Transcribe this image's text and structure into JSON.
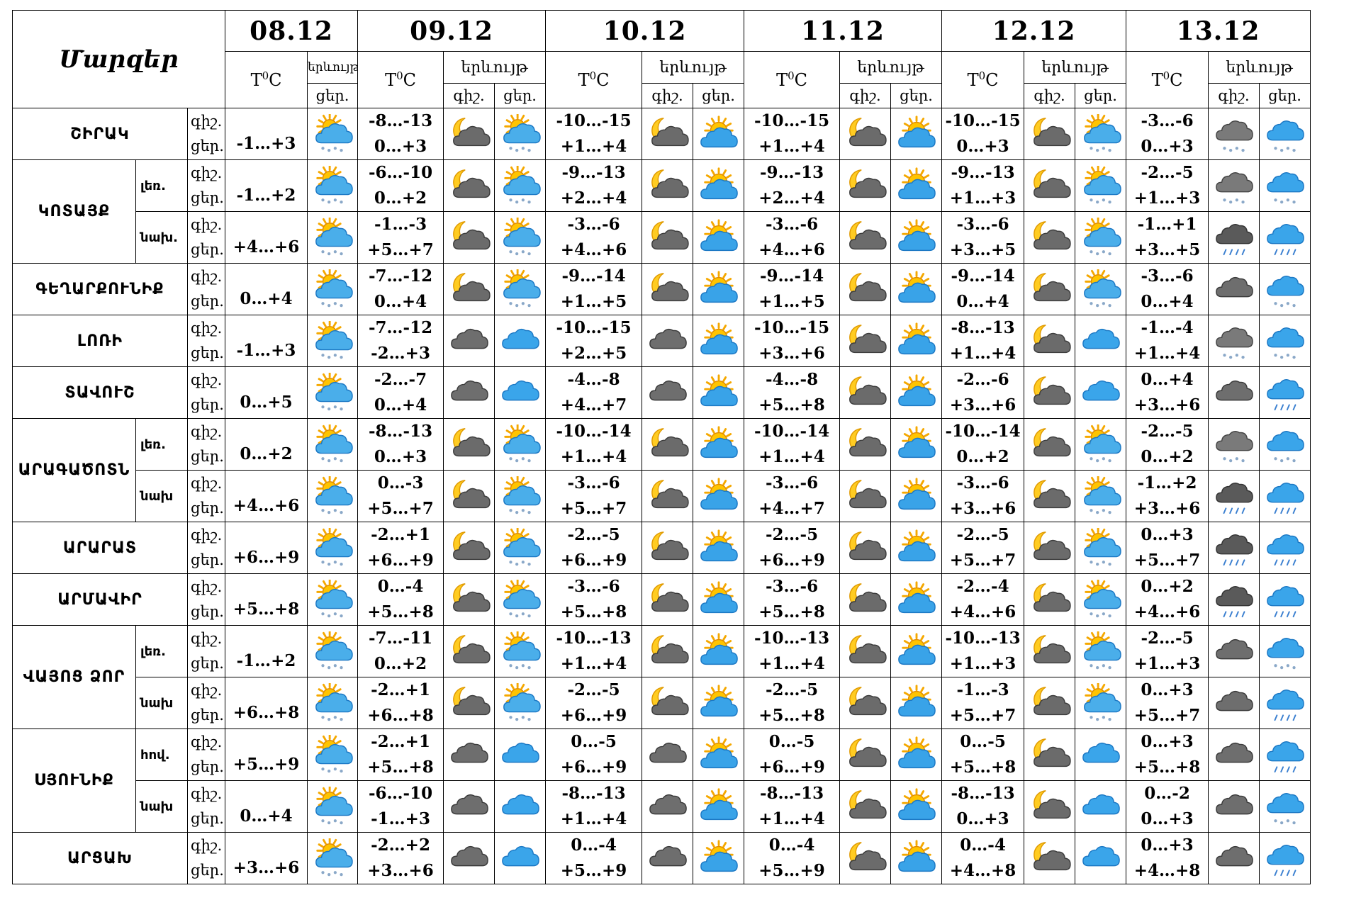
{
  "header": {
    "corner_label": "Մարզեր",
    "temp_label": "T",
    "temp_sup": "0",
    "temp_unit": "C",
    "phenomenon_label": "երևույթ",
    "night_label": "գիշ.",
    "day_label": "ցեր."
  },
  "dates": [
    "08.12",
    "09.12",
    "10.12",
    "11.12",
    "12.12",
    "13.12"
  ],
  "regions": [
    {
      "name": "ՇԻՐԱԿ",
      "rows": [
        {
          "sub": "",
          "d0": {
            "t": "-1…+3",
            "icon": "sun-cloud-snow-icon"
          },
          "days": [
            {
              "n": "-8…-13",
              "d": "0…+3",
              "ni": "moon-cloud-icon",
              "di": "sun-cloud-snow-icon"
            },
            {
              "n": "-10…-15",
              "d": "+1…+4",
              "ni": "moon-cloud-icon",
              "di": "sun-cloud-icon"
            },
            {
              "n": "-10…-15",
              "d": "+1…+4",
              "ni": "moon-cloud-icon",
              "di": "sun-cloud-icon"
            },
            {
              "n": "-10…-15",
              "d": "0…+3",
              "ni": "moon-cloud-icon",
              "di": "sun-cloud-snow-icon"
            },
            {
              "n": "-3…-6",
              "d": "0…+3",
              "ni": "cloud-snow-icon",
              "di": "blue-cloud-snow-icon"
            }
          ]
        }
      ]
    },
    {
      "name": "ԿՈՏԱՅՔ",
      "rows": [
        {
          "sub": "լեռ.",
          "d0": {
            "t": "-1…+2",
            "icon": "sun-cloud-snow-icon"
          },
          "days": [
            {
              "n": "-6…-10",
              "d": "0…+2",
              "ni": "moon-cloud-icon",
              "di": "sun-cloud-snow-icon"
            },
            {
              "n": "-9…-13",
              "d": "+2…+4",
              "ni": "moon-cloud-icon",
              "di": "sun-cloud-icon"
            },
            {
              "n": "-9…-13",
              "d": "+2…+4",
              "ni": "moon-cloud-icon",
              "di": "sun-cloud-icon"
            },
            {
              "n": "-9…-13",
              "d": "+1…+3",
              "ni": "moon-cloud-icon",
              "di": "sun-cloud-snow-icon"
            },
            {
              "n": "-2…-5",
              "d": "+1…+3",
              "ni": "cloud-snow-icon",
              "di": "blue-cloud-snow-icon"
            }
          ]
        },
        {
          "sub": "նախ.",
          "d0": {
            "t": "+4…+6",
            "icon": "sun-cloud-snow-icon"
          },
          "days": [
            {
              "n": "-1…-3",
              "d": "+5…+7",
              "ni": "moon-cloud-icon",
              "di": "sun-cloud-snow-icon"
            },
            {
              "n": "-3…-6",
              "d": "+4…+6",
              "ni": "moon-cloud-icon",
              "di": "sun-cloud-icon"
            },
            {
              "n": "-3…-6",
              "d": "+4…+6",
              "ni": "moon-cloud-icon",
              "di": "sun-cloud-icon"
            },
            {
              "n": "-3…-6",
              "d": "+3…+5",
              "ni": "moon-cloud-icon",
              "di": "sun-cloud-snow-icon"
            },
            {
              "n": "-1…+1",
              "d": "+3…+5",
              "ni": "cloud-rain-icon",
              "di": "blue-cloud-rain-icon"
            }
          ]
        }
      ]
    },
    {
      "name": "ԳԵՂԱՐՔՈՒՆԻՔ",
      "rows": [
        {
          "sub": "",
          "d0": {
            "t": "0…+4",
            "icon": "sun-cloud-snow-icon"
          },
          "days": [
            {
              "n": "-7…-12",
              "d": "0…+4",
              "ni": "moon-cloud-icon",
              "di": "sun-cloud-snow-icon"
            },
            {
              "n": "-9…-14",
              "d": "+1…+5",
              "ni": "moon-cloud-icon",
              "di": "sun-cloud-icon"
            },
            {
              "n": "-9…-14",
              "d": "+1…+5",
              "ni": "moon-cloud-icon",
              "di": "sun-cloud-icon"
            },
            {
              "n": "-9…-14",
              "d": "0…+4",
              "ni": "moon-cloud-icon",
              "di": "sun-cloud-snow-icon"
            },
            {
              "n": "-3…-6",
              "d": "0…+4",
              "ni": "cloud-icon",
              "di": "blue-cloud-snow-icon"
            }
          ]
        }
      ]
    },
    {
      "name": "ԼՈՌԻ",
      "rows": [
        {
          "sub": "",
          "d0": {
            "t": "-1…+3",
            "icon": "sun-cloud-snow-icon"
          },
          "days": [
            {
              "n": "-7…-12",
              "d": "-2…+3",
              "ni": "cloud-icon",
              "di": "blue-cloud-icon"
            },
            {
              "n": "-10…-15",
              "d": "+2…+5",
              "ni": "cloud-icon",
              "di": "sun-cloud-icon"
            },
            {
              "n": "-10…-15",
              "d": "+3…+6",
              "ni": "moon-cloud-icon",
              "di": "sun-cloud-icon"
            },
            {
              "n": "-8…-13",
              "d": "+1…+4",
              "ni": "moon-cloud-icon",
              "di": "blue-cloud-icon"
            },
            {
              "n": "-1…-4",
              "d": "+1…+4",
              "ni": "cloud-snow-icon",
              "di": "blue-cloud-snow-icon"
            }
          ]
        }
      ]
    },
    {
      "name": "ՏԱՎՈՒՇ",
      "rows": [
        {
          "sub": "",
          "d0": {
            "t": "0…+5",
            "icon": "sun-cloud-snow-icon"
          },
          "days": [
            {
              "n": "-2…-7",
              "d": "0…+4",
              "ni": "cloud-icon",
              "di": "blue-cloud-icon"
            },
            {
              "n": "-4…-8",
              "d": "+4…+7",
              "ni": "cloud-icon",
              "di": "sun-cloud-icon"
            },
            {
              "n": "-4…-8",
              "d": "+5…+8",
              "ni": "moon-cloud-icon",
              "di": "sun-cloud-icon"
            },
            {
              "n": "-2…-6",
              "d": "+3…+6",
              "ni": "moon-cloud-icon",
              "di": "blue-cloud-icon"
            },
            {
              "n": "0…+4",
              "d": "+3…+6",
              "ni": "cloud-icon",
              "di": "blue-cloud-rain-icon"
            }
          ]
        }
      ]
    },
    {
      "name": "ԱՐԱԳԱԾՈՏՆ",
      "rows": [
        {
          "sub": "լեռ.",
          "d0": {
            "t": "0…+2",
            "icon": "sun-cloud-snow-icon"
          },
          "days": [
            {
              "n": "-8…-13",
              "d": "0…+3",
              "ni": "moon-cloud-icon",
              "di": "sun-cloud-snow-icon"
            },
            {
              "n": "-10…-14",
              "d": "+1…+4",
              "ni": "moon-cloud-icon",
              "di": "sun-cloud-icon"
            },
            {
              "n": "-10…-14",
              "d": "+1…+4",
              "ni": "moon-cloud-icon",
              "di": "sun-cloud-icon"
            },
            {
              "n": "-10…-14",
              "d": "0…+2",
              "ni": "moon-cloud-icon",
              "di": "sun-cloud-snow-icon"
            },
            {
              "n": "-2…-5",
              "d": "0…+2",
              "ni": "cloud-snow-icon",
              "di": "blue-cloud-snow-icon"
            }
          ]
        },
        {
          "sub": "նախ",
          "d0": {
            "t": "+4…+6",
            "icon": "sun-cloud-snow-icon"
          },
          "days": [
            {
              "n": "0…-3",
              "d": "+5…+7",
              "ni": "moon-cloud-icon",
              "di": "sun-cloud-snow-icon"
            },
            {
              "n": "-3…-6",
              "d": "+5…+7",
              "ni": "moon-cloud-icon",
              "di": "sun-cloud-icon"
            },
            {
              "n": "-3…-6",
              "d": "+4…+7",
              "ni": "moon-cloud-icon",
              "di": "sun-cloud-icon"
            },
            {
              "n": "-3…-6",
              "d": "+3…+6",
              "ni": "moon-cloud-icon",
              "di": "sun-cloud-snow-icon"
            },
            {
              "n": "-1…+2",
              "d": "+3…+6",
              "ni": "cloud-rain-icon",
              "di": "blue-cloud-rain-icon"
            }
          ]
        }
      ]
    },
    {
      "name": "ԱՐԱՐԱՏ",
      "rows": [
        {
          "sub": "",
          "d0": {
            "t": "+6…+9",
            "icon": "sun-cloud-snow-icon"
          },
          "days": [
            {
              "n": "-2…+1",
              "d": "+6…+9",
              "ni": "moon-cloud-icon",
              "di": "sun-cloud-snow-icon"
            },
            {
              "n": "-2…-5",
              "d": "+6…+9",
              "ni": "moon-cloud-icon",
              "di": "sun-cloud-icon"
            },
            {
              "n": "-2…-5",
              "d": "+6…+9",
              "ni": "moon-cloud-icon",
              "di": "sun-cloud-icon"
            },
            {
              "n": "-2…-5",
              "d": "+5…+7",
              "ni": "moon-cloud-icon",
              "di": "sun-cloud-snow-icon"
            },
            {
              "n": "0…+3",
              "d": "+5…+7",
              "ni": "cloud-rain-icon",
              "di": "blue-cloud-rain-icon"
            }
          ]
        }
      ]
    },
    {
      "name": "ԱՐՄԱՎԻՐ",
      "rows": [
        {
          "sub": "",
          "d0": {
            "t": "+5…+8",
            "icon": "sun-cloud-snow-icon"
          },
          "days": [
            {
              "n": "0…-4",
              "d": "+5…+8",
              "ni": "moon-cloud-icon",
              "di": "sun-cloud-snow-icon"
            },
            {
              "n": "-3…-6",
              "d": "+5…+8",
              "ni": "moon-cloud-icon",
              "di": "sun-cloud-icon"
            },
            {
              "n": "-3…-6",
              "d": "+5…+8",
              "ni": "moon-cloud-icon",
              "di": "sun-cloud-icon"
            },
            {
              "n": "-2…-4",
              "d": "+4…+6",
              "ni": "moon-cloud-icon",
              "di": "sun-cloud-snow-icon"
            },
            {
              "n": "0…+2",
              "d": "+4…+6",
              "ni": "cloud-rain-icon",
              "di": "blue-cloud-rain-icon"
            }
          ]
        }
      ]
    },
    {
      "name": "ՎԱՅՈՑ ՁՈՐ",
      "rows": [
        {
          "sub": "լեռ.",
          "d0": {
            "t": "-1…+2",
            "icon": "sun-cloud-snow-icon"
          },
          "days": [
            {
              "n": "-7…-11",
              "d": "0…+2",
              "ni": "moon-cloud-icon",
              "di": "sun-cloud-snow-icon"
            },
            {
              "n": "-10…-13",
              "d": "+1…+4",
              "ni": "moon-cloud-icon",
              "di": "sun-cloud-icon"
            },
            {
              "n": "-10…-13",
              "d": "+1…+4",
              "ni": "moon-cloud-icon",
              "di": "sun-cloud-icon"
            },
            {
              "n": "-10…-13",
              "d": "+1…+3",
              "ni": "moon-cloud-icon",
              "di": "sun-cloud-snow-icon"
            },
            {
              "n": "-2…-5",
              "d": "+1…+3",
              "ni": "cloud-icon",
              "di": "blue-cloud-snow-icon"
            }
          ]
        },
        {
          "sub": "նախ",
          "d0": {
            "t": "+6…+8",
            "icon": "sun-cloud-snow-icon"
          },
          "days": [
            {
              "n": "-2…+1",
              "d": "+6…+8",
              "ni": "moon-cloud-icon",
              "di": "sun-cloud-snow-icon"
            },
            {
              "n": "-2…-5",
              "d": "+6…+9",
              "ni": "moon-cloud-icon",
              "di": "sun-cloud-icon"
            },
            {
              "n": "-2…-5",
              "d": "+5…+8",
              "ni": "moon-cloud-icon",
              "di": "sun-cloud-icon"
            },
            {
              "n": "-1…-3",
              "d": "+5…+7",
              "ni": "moon-cloud-icon",
              "di": "sun-cloud-snow-icon"
            },
            {
              "n": "0…+3",
              "d": "+5…+7",
              "ni": "cloud-icon",
              "di": "blue-cloud-rain-icon"
            }
          ]
        }
      ]
    },
    {
      "name": "ՍՅՈՒՆԻՔ",
      "rows": [
        {
          "sub": "հով.",
          "d0": {
            "t": "+5…+9",
            "icon": "sun-cloud-snow-icon"
          },
          "days": [
            {
              "n": "-2…+1",
              "d": "+5…+8",
              "ni": "cloud-icon",
              "di": "blue-cloud-icon"
            },
            {
              "n": "0…-5",
              "d": "+6…+9",
              "ni": "cloud-icon",
              "di": "sun-cloud-icon"
            },
            {
              "n": "0…-5",
              "d": "+6…+9",
              "ni": "moon-cloud-icon",
              "di": "sun-cloud-icon"
            },
            {
              "n": "0…-5",
              "d": "+5…+8",
              "ni": "moon-cloud-icon",
              "di": "blue-cloud-icon"
            },
            {
              "n": "0…+3",
              "d": "+5…+8",
              "ni": "cloud-icon",
              "di": "blue-cloud-rain-icon"
            }
          ]
        },
        {
          "sub": "նախ",
          "d0": {
            "t": "0…+4",
            "icon": "sun-cloud-snow-icon"
          },
          "days": [
            {
              "n": "-6…-10",
              "d": "-1…+3",
              "ni": "cloud-icon",
              "di": "blue-cloud-icon"
            },
            {
              "n": "-8…-13",
              "d": "+1…+4",
              "ni": "cloud-icon",
              "di": "sun-cloud-icon"
            },
            {
              "n": "-8…-13",
              "d": "+1…+4",
              "ni": "moon-cloud-icon",
              "di": "sun-cloud-icon"
            },
            {
              "n": "-8…-13",
              "d": "0…+3",
              "ni": "moon-cloud-icon",
              "di": "blue-cloud-icon"
            },
            {
              "n": "0…-2",
              "d": "0…+3",
              "ni": "cloud-icon",
              "di": "blue-cloud-snow-icon"
            }
          ]
        }
      ]
    },
    {
      "name": "ԱՐՑԱԽ",
      "rows": [
        {
          "sub": "",
          "d0": {
            "t": "+3…+6",
            "icon": "sun-cloud-snow-icon"
          },
          "days": [
            {
              "n": "-2…+2",
              "d": "+3…+6",
              "ni": "cloud-icon",
              "di": "blue-cloud-icon"
            },
            {
              "n": "0…-4",
              "d": "+5…+9",
              "ni": "cloud-icon",
              "di": "sun-cloud-icon"
            },
            {
              "n": "0…-4",
              "d": "+5…+9",
              "ni": "moon-cloud-icon",
              "di": "sun-cloud-icon"
            },
            {
              "n": "0…-4",
              "d": "+4…+8",
              "ni": "moon-cloud-icon",
              "di": "blue-cloud-icon"
            },
            {
              "n": "0…+3",
              "d": "+4…+8",
              "ni": "cloud-icon",
              "di": "blue-cloud-rain-icon"
            }
          ]
        }
      ]
    }
  ]
}
